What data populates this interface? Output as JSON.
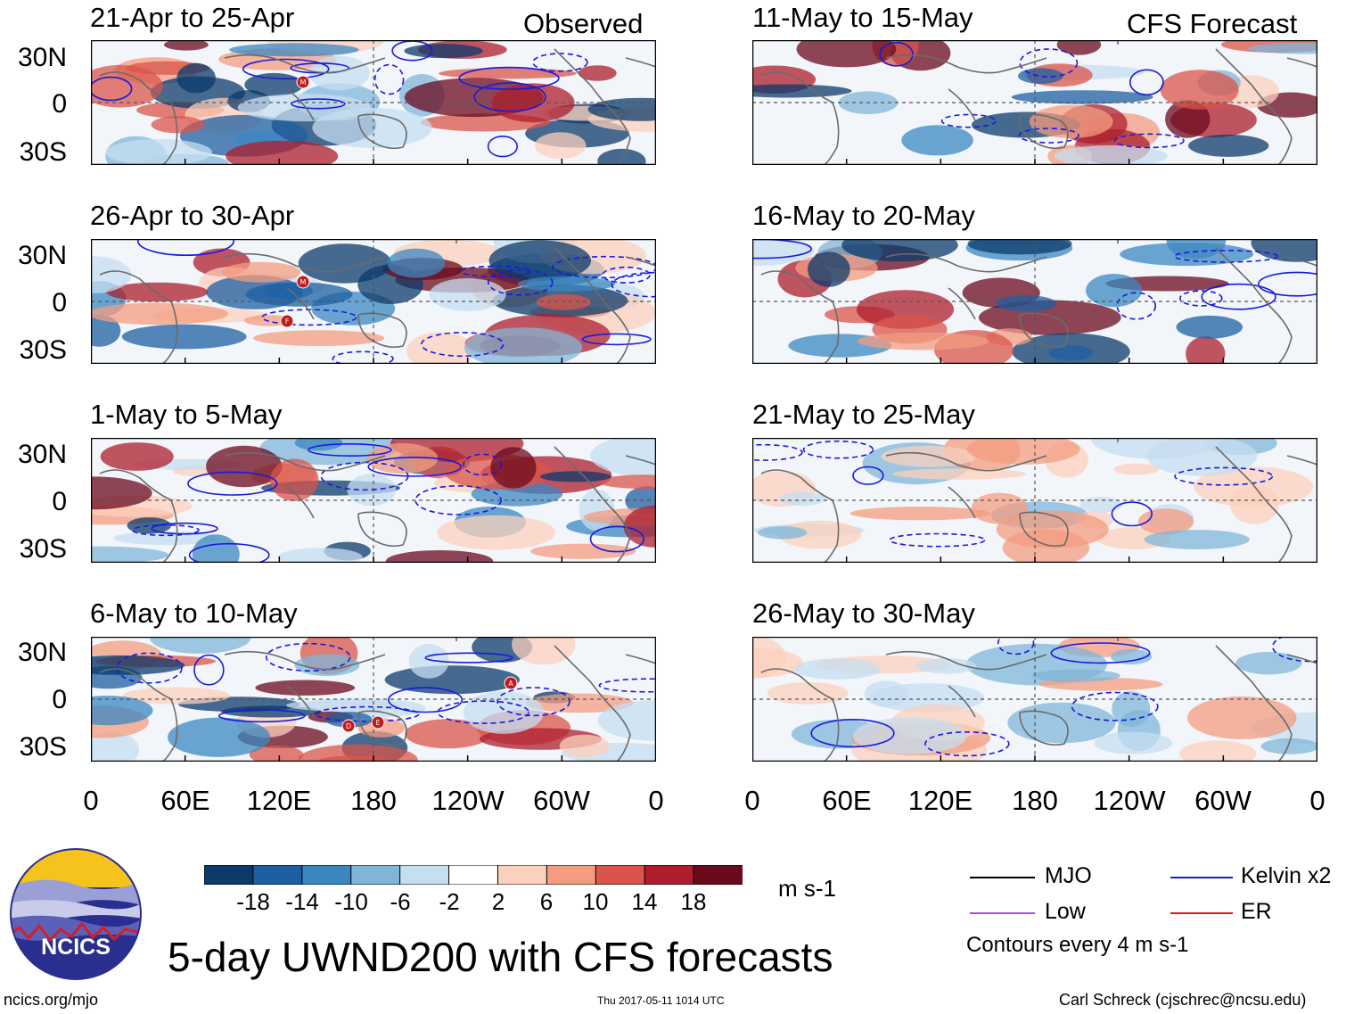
{
  "title": "5-day UWND200 with CFS forecasts",
  "columns": {
    "left_header": "Observed",
    "right_header": "CFS Forecast"
  },
  "panels": [
    {
      "period": "21-Apr to 25-Apr",
      "source": "Observed"
    },
    {
      "period": "26-Apr to 30-Apr",
      "source": "Observed"
    },
    {
      "period": "1-May to 5-May",
      "source": "Observed"
    },
    {
      "period": "6-May to 10-May",
      "source": "Observed"
    },
    {
      "period": "11-May to 15-May",
      "source": "CFS Forecast"
    },
    {
      "period": "16-May to 20-May",
      "source": "CFS Forecast"
    },
    {
      "period": "21-May to 25-May",
      "source": "CFS Forecast"
    },
    {
      "period": "26-May to 30-May",
      "source": "CFS Forecast"
    }
  ],
  "lat_ticks": [
    "30N",
    "0",
    "30S"
  ],
  "lon_ticks": [
    "0",
    "60E",
    "120E",
    "180",
    "120W",
    "60W",
    "0"
  ],
  "storm_markers": [
    {
      "panel": 0,
      "letter": "M"
    },
    {
      "panel": 1,
      "letter": "M"
    },
    {
      "panel": 1,
      "letter": "F"
    },
    {
      "panel": 3,
      "letter": "D"
    },
    {
      "panel": 3,
      "letter": "E"
    },
    {
      "panel": 3,
      "letter": "A"
    }
  ],
  "colorbar": {
    "labels": [
      "-18",
      "-14",
      "-10",
      "-6",
      "-2",
      "2",
      "6",
      "10",
      "14",
      "18"
    ],
    "colors": [
      "#0b3a6b",
      "#1d5fa3",
      "#3b87c0",
      "#7fb6d8",
      "#c5def0",
      "#ffffff",
      "#fbd0bc",
      "#f39c80",
      "#d9544a",
      "#ad1d2e",
      "#6b0a1d"
    ],
    "units": "m s-1"
  },
  "legend": {
    "items": [
      {
        "label": "MJO",
        "color": "#000000"
      },
      {
        "label": "Kelvin x2",
        "color": "#1a1adf"
      },
      {
        "label": "Low",
        "color": "#a64fd9"
      },
      {
        "label": "ER",
        "color": "#d91a1a"
      }
    ],
    "contour_note": "Contours every 4 m s-1"
  },
  "logo_text": "NCICS",
  "footer": {
    "url": "ncics.org/mjo",
    "timestamp": "Thu 2017-05-11 1014 UTC",
    "author": "Carl Schreck (cjschrec@ncsu.edu)"
  }
}
